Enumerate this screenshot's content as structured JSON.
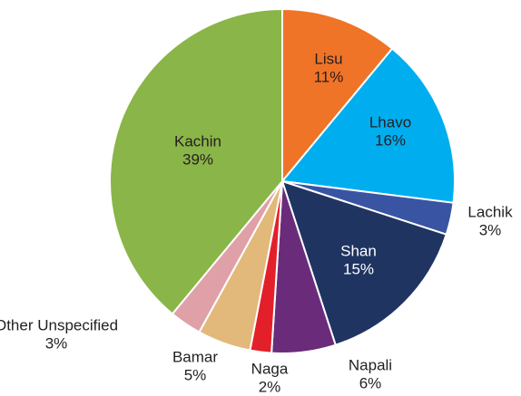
{
  "chart_data": {
    "type": "pie",
    "categories": [
      "Lisu",
      "Lhavo",
      "Lachik",
      "Shan",
      "Napali",
      "Naga",
      "Bamar",
      "Other Unspecified",
      "Kachin"
    ],
    "values": [
      11,
      16,
      3,
      15,
      6,
      2,
      5,
      3,
      39
    ],
    "value_labels": [
      "11%",
      "16%",
      "3%",
      "15%",
      "6%",
      "2%",
      "5%",
      "3%",
      "39%"
    ],
    "colors": [
      "#f07427",
      "#00aeef",
      "#3a54a4",
      "#1f3461",
      "#6a2c7a",
      "#e3202a",
      "#e2b97a",
      "#e0a0a8",
      "#8ab548"
    ]
  }
}
